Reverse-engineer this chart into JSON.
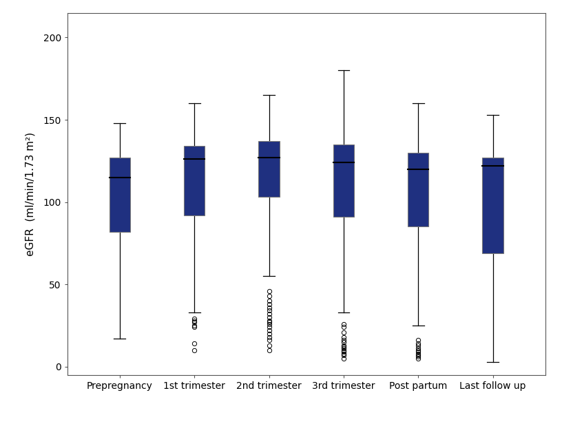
{
  "categories": [
    "Prepregnancy",
    "1st trimester",
    "2nd trimester",
    "3rd trimester",
    "Post partum",
    "Last follow up"
  ],
  "box_data": [
    {
      "whislo": 17,
      "q1": 82,
      "med": 115,
      "q3": 127,
      "whishi": 148,
      "fliers": []
    },
    {
      "whislo": 33,
      "q1": 92,
      "med": 126,
      "q3": 134,
      "whishi": 160,
      "fliers": [
        10,
        14,
        24,
        25,
        27,
        28,
        29
      ]
    },
    {
      "whislo": 55,
      "q1": 103,
      "med": 127,
      "q3": 137,
      "whishi": 165,
      "fliers": [
        10,
        13,
        16,
        18,
        20,
        22,
        24,
        26,
        27,
        28,
        30,
        32,
        34,
        36,
        38,
        40,
        43,
        46
      ]
    },
    {
      "whislo": 33,
      "q1": 91,
      "med": 124,
      "q3": 135,
      "whishi": 180,
      "fliers": [
        5,
        7,
        8,
        9,
        10,
        11,
        12,
        13,
        15,
        16,
        18,
        21,
        24,
        26
      ]
    },
    {
      "whislo": 25,
      "q1": 85,
      "med": 120,
      "q3": 130,
      "whishi": 160,
      "fliers": [
        5,
        6,
        7,
        8,
        9,
        10,
        11,
        13,
        14,
        16
      ]
    },
    {
      "whislo": 3,
      "q1": 69,
      "med": 122,
      "q3": 127,
      "whishi": 153,
      "fliers": []
    }
  ],
  "box_color": "#1F3080",
  "box_edge_color": "#777777",
  "median_color": "#000000",
  "whisker_color": "#000000",
  "flier_color": "#000000",
  "ylabel": "eGFR  (ml/min/1.73 m²)",
  "ylim": [
    -5,
    215
  ],
  "yticks": [
    0,
    50,
    100,
    150,
    200
  ],
  "background_color": "#ffffff",
  "plot_bg_color": "#ffffff",
  "box_width": 0.28,
  "cap_ratio": 0.55,
  "figsize": [
    8.16,
    6.19
  ],
  "dpi": 100
}
